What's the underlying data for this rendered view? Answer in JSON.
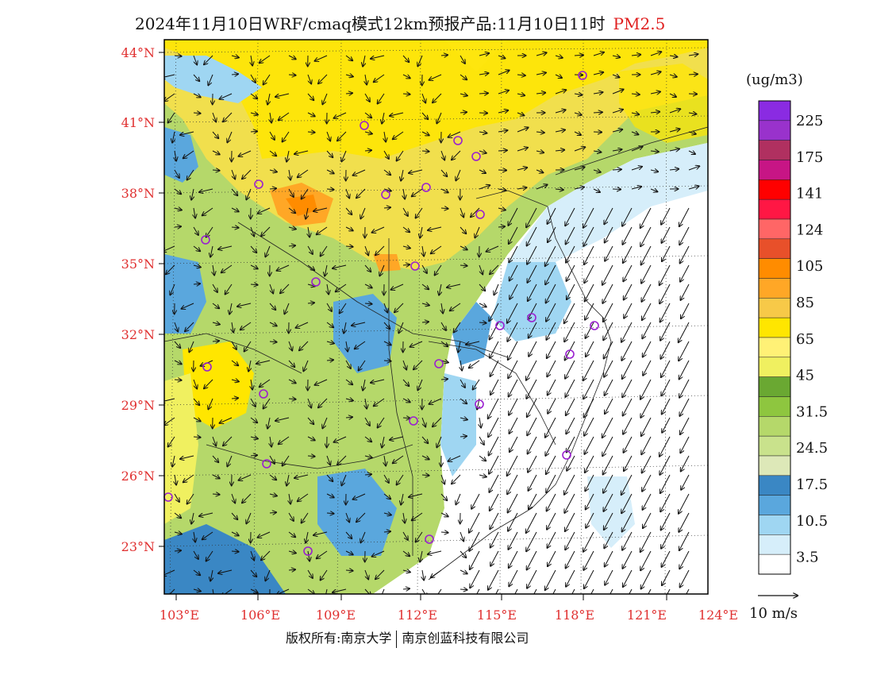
{
  "title": {
    "main": "2024年11月10日WRF/cmaq模式12km预报产品:11月10日11时",
    "pollutant": "PM2.5"
  },
  "colorbar": {
    "unit": "(ug/m3)",
    "labels": [
      "225",
      "175",
      "141",
      "124",
      "105",
      "85",
      "65",
      "45",
      "31.5",
      "24.5",
      "17.5",
      "10.5",
      "3.5"
    ],
    "colors": [
      "#8a2be2",
      "#9932cc",
      "#b03060",
      "#c71585",
      "#ff0000",
      "#ff1744",
      "#ff6666",
      "#e8502a",
      "#ff8c00",
      "#ffa726",
      "#f7c948",
      "#ffe600",
      "#fff176",
      "#f0f060",
      "#6aa832",
      "#8ec63f",
      "#b5d86a",
      "#c9e28c",
      "#dde8b8",
      "#3a87c4",
      "#5aa7dd",
      "#9fd6f2",
      "#d6eefa",
      "#ffffff"
    ]
  },
  "axes": {
    "lat_labels": [
      "44°N",
      "41°N",
      "38°N",
      "35°N",
      "32°N",
      "29°N",
      "26°N",
      "23°N"
    ],
    "lon_labels": [
      "103°E",
      "106°E",
      "109°E",
      "112°E",
      "115°E",
      "118°E",
      "121°E",
      "124°E"
    ]
  },
  "vector_label": "10 m/s",
  "copyright": {
    "left": "版权所有:南京大学",
    "right": "南京创蓝科技有限公司"
  }
}
